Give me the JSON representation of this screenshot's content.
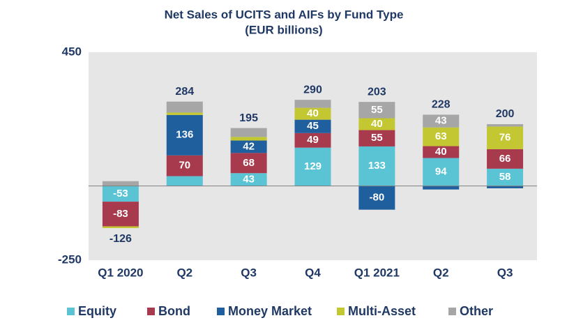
{
  "chart_data": {
    "type": "stacked_bar",
    "title": "Net Sales of UCITS and AIFs by Fund Type",
    "subtitle": "(EUR billions)",
    "categories": [
      "Q1 2020",
      "Q2",
      "Q3",
      "Q4",
      "Q1 2021",
      "Q2",
      "Q3"
    ],
    "series": [
      {
        "name": "Equity",
        "color": "#5bc4d4",
        "values": [
          -53,
          33,
          43,
          129,
          133,
          94,
          58
        ]
      },
      {
        "name": "Bond",
        "color": "#a83a4e",
        "values": [
          -83,
          70,
          68,
          49,
          55,
          40,
          66
        ]
      },
      {
        "name": "Money Market",
        "color": "#1f5f9e",
        "values": [
          0,
          136,
          42,
          45,
          -80,
          -12,
          -8
        ]
      },
      {
        "name": "Multi-Asset",
        "color": "#c3c732",
        "values": [
          -6,
          8,
          12,
          40,
          40,
          63,
          76
        ]
      },
      {
        "name": "Other",
        "color": "#a6a6a6",
        "values": [
          16,
          37,
          30,
          27,
          55,
          43,
          8
        ]
      }
    ],
    "totals": [
      -126,
      284,
      195,
      290,
      203,
      228,
      200
    ],
    "ylim": [
      -250,
      450
    ],
    "yticks": [
      -250,
      450
    ],
    "grid": false,
    "legend": "bottom"
  }
}
